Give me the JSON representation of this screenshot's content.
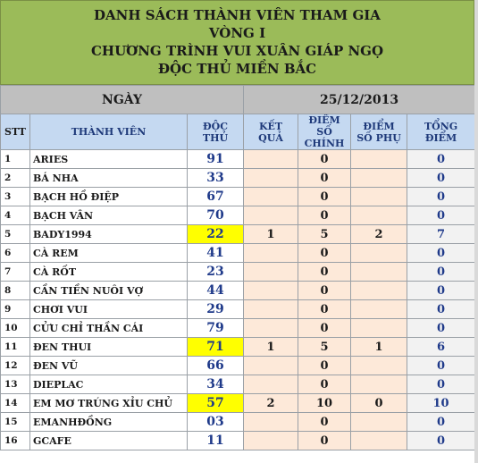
{
  "title": {
    "line1": "DANH SÁCH  THÀNH VIÊN THAM GIA",
    "line2": "VÒNG I",
    "line3": "CHƯƠNG TRÌNH VUI XUÂN GIÁP NGỌ",
    "line4": "ĐỘC THỦ MIỀN BẮC"
  },
  "date_row": {
    "label": "NGÀY",
    "value": "25/12/2013"
  },
  "headers": {
    "stt": "STT",
    "name": "THÀNH VIÊN",
    "doc_thu": "ĐỘC THỦ",
    "ket_qua": "KẾT QUẢ",
    "diem_chinh": "ĐIỂM SỐ CHÍNH",
    "diem_phu": "ĐIỂM SỐ PHỤ",
    "tong_diem": "TỔNG ĐIỂM"
  },
  "rows": [
    {
      "stt": "1",
      "name": "ARIES",
      "doc_thu": "91",
      "ket_qua": "",
      "diem_chinh": "0",
      "diem_phu": "",
      "tong": "0",
      "highlight": false
    },
    {
      "stt": "2",
      "name": "BÁ NHA",
      "doc_thu": "33",
      "ket_qua": "",
      "diem_chinh": "0",
      "diem_phu": "",
      "tong": "0",
      "highlight": false
    },
    {
      "stt": "3",
      "name": "BẠCH HỒ ĐIỆP",
      "doc_thu": "67",
      "ket_qua": "",
      "diem_chinh": "0",
      "diem_phu": "",
      "tong": "0",
      "highlight": false
    },
    {
      "stt": "4",
      "name": "BẠCH VÂN",
      "doc_thu": "70",
      "ket_qua": "",
      "diem_chinh": "0",
      "diem_phu": "",
      "tong": "0",
      "highlight": false
    },
    {
      "stt": "5",
      "name": "BADY1994",
      "doc_thu": "22",
      "ket_qua": "1",
      "diem_chinh": "5",
      "diem_phu": "2",
      "tong": "7",
      "highlight": true
    },
    {
      "stt": "6",
      "name": "CÀ REM",
      "doc_thu": "41",
      "ket_qua": "",
      "diem_chinh": "0",
      "diem_phu": "",
      "tong": "0",
      "highlight": false
    },
    {
      "stt": "7",
      "name": "CÀ RỐT",
      "doc_thu": "23",
      "ket_qua": "",
      "diem_chinh": "0",
      "diem_phu": "",
      "tong": "0",
      "highlight": false
    },
    {
      "stt": "8",
      "name": "CẦN TIỀN NUÔI VỢ",
      "doc_thu": "44",
      "ket_qua": "",
      "diem_chinh": "0",
      "diem_phu": "",
      "tong": "0",
      "highlight": false
    },
    {
      "stt": "9",
      "name": "CHƠI VUI",
      "doc_thu": "29",
      "ket_qua": "",
      "diem_chinh": "0",
      "diem_phu": "",
      "tong": "0",
      "highlight": false
    },
    {
      "stt": "10",
      "name": "CỬU CHỈ THẦN CÁI",
      "doc_thu": "79",
      "ket_qua": "",
      "diem_chinh": "0",
      "diem_phu": "",
      "tong": "0",
      "highlight": false
    },
    {
      "stt": "11",
      "name": "ĐEN THUI",
      "doc_thu": "71",
      "ket_qua": "1",
      "diem_chinh": "5",
      "diem_phu": "1",
      "tong": "6",
      "highlight": true
    },
    {
      "stt": "12",
      "name": "ĐEN VŨ",
      "doc_thu": "66",
      "ket_qua": "",
      "diem_chinh": "0",
      "diem_phu": "",
      "tong": "0",
      "highlight": false
    },
    {
      "stt": "13",
      "name": "DIEPLAC",
      "doc_thu": "34",
      "ket_qua": "",
      "diem_chinh": "0",
      "diem_phu": "",
      "tong": "0",
      "highlight": false
    },
    {
      "stt": "14",
      "name": "EM MƠ TRÚNG XỈU CHỦ",
      "doc_thu": "57",
      "ket_qua": "2",
      "diem_chinh": "10",
      "diem_phu": "0",
      "tong": "10",
      "highlight": true
    },
    {
      "stt": "15",
      "name": "EMANHĐỒNG",
      "doc_thu": "03",
      "ket_qua": "",
      "diem_chinh": "0",
      "diem_phu": "",
      "tong": "0",
      "highlight": false
    },
    {
      "stt": "16",
      "name": "GCAFE",
      "doc_thu": "11",
      "ket_qua": "",
      "diem_chinh": "0",
      "diem_phu": "",
      "tong": "0",
      "highlight": false
    }
  ],
  "colors": {
    "title_bg": "#9bbb59",
    "header_bg": "#c5d9f1",
    "score_bg": "#fde9d9",
    "highlight": "#ffff00",
    "number_color": "#1f3a8a"
  }
}
